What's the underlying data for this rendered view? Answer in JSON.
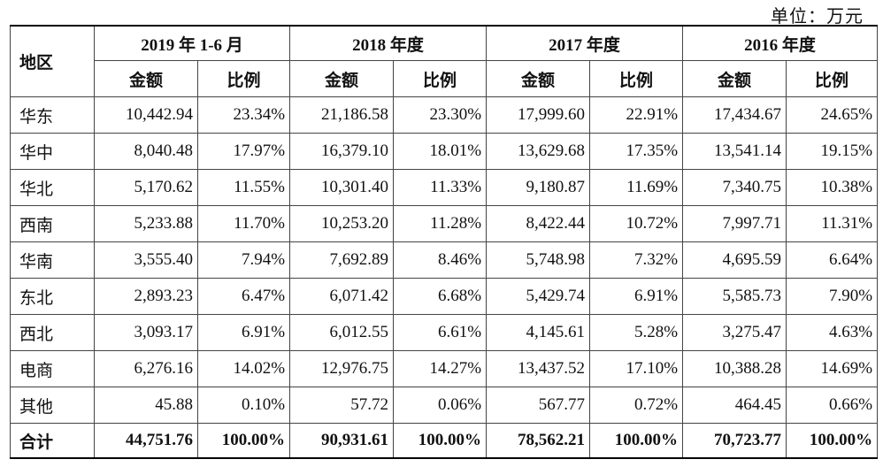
{
  "unit_label": "单位：万元",
  "header": {
    "region": "地区",
    "periods": [
      "2019 年 1-6 月",
      "2018 年度",
      "2017 年度",
      "2016 年度"
    ],
    "amount": "金额",
    "ratio": "比例"
  },
  "rows": [
    {
      "region": "华东",
      "cells": [
        "10,442.94",
        "23.34%",
        "21,186.58",
        "23.30%",
        "17,999.60",
        "22.91%",
        "17,434.67",
        "24.65%"
      ]
    },
    {
      "region": "华中",
      "cells": [
        "8,040.48",
        "17.97%",
        "16,379.10",
        "18.01%",
        "13,629.68",
        "17.35%",
        "13,541.14",
        "19.15%"
      ]
    },
    {
      "region": "华北",
      "cells": [
        "5,170.62",
        "11.55%",
        "10,301.40",
        "11.33%",
        "9,180.87",
        "11.69%",
        "7,340.75",
        "10.38%"
      ]
    },
    {
      "region": "西南",
      "cells": [
        "5,233.88",
        "11.70%",
        "10,253.20",
        "11.28%",
        "8,422.44",
        "10.72%",
        "7,997.71",
        "11.31%"
      ]
    },
    {
      "region": "华南",
      "cells": [
        "3,555.40",
        "7.94%",
        "7,692.89",
        "8.46%",
        "5,748.98",
        "7.32%",
        "4,695.59",
        "6.64%"
      ]
    },
    {
      "region": "东北",
      "cells": [
        "2,893.23",
        "6.47%",
        "6,071.42",
        "6.68%",
        "5,429.74",
        "6.91%",
        "5,585.73",
        "7.90%"
      ]
    },
    {
      "region": "西北",
      "cells": [
        "3,093.17",
        "6.91%",
        "6,012.55",
        "6.61%",
        "4,145.61",
        "5.28%",
        "3,275.47",
        "4.63%"
      ]
    },
    {
      "region": "电商",
      "cells": [
        "6,276.16",
        "14.02%",
        "12,976.75",
        "14.27%",
        "13,437.52",
        "17.10%",
        "10,388.28",
        "14.69%"
      ]
    },
    {
      "region": "其他",
      "cells": [
        "45.88",
        "0.10%",
        "57.72",
        "0.06%",
        "567.77",
        "0.72%",
        "464.45",
        "0.66%"
      ]
    }
  ],
  "total": {
    "region": "合计",
    "cells": [
      "44,751.76",
      "100.00%",
      "90,931.61",
      "100.00%",
      "78,562.21",
      "100.00%",
      "70,723.77",
      "100.00%"
    ]
  }
}
